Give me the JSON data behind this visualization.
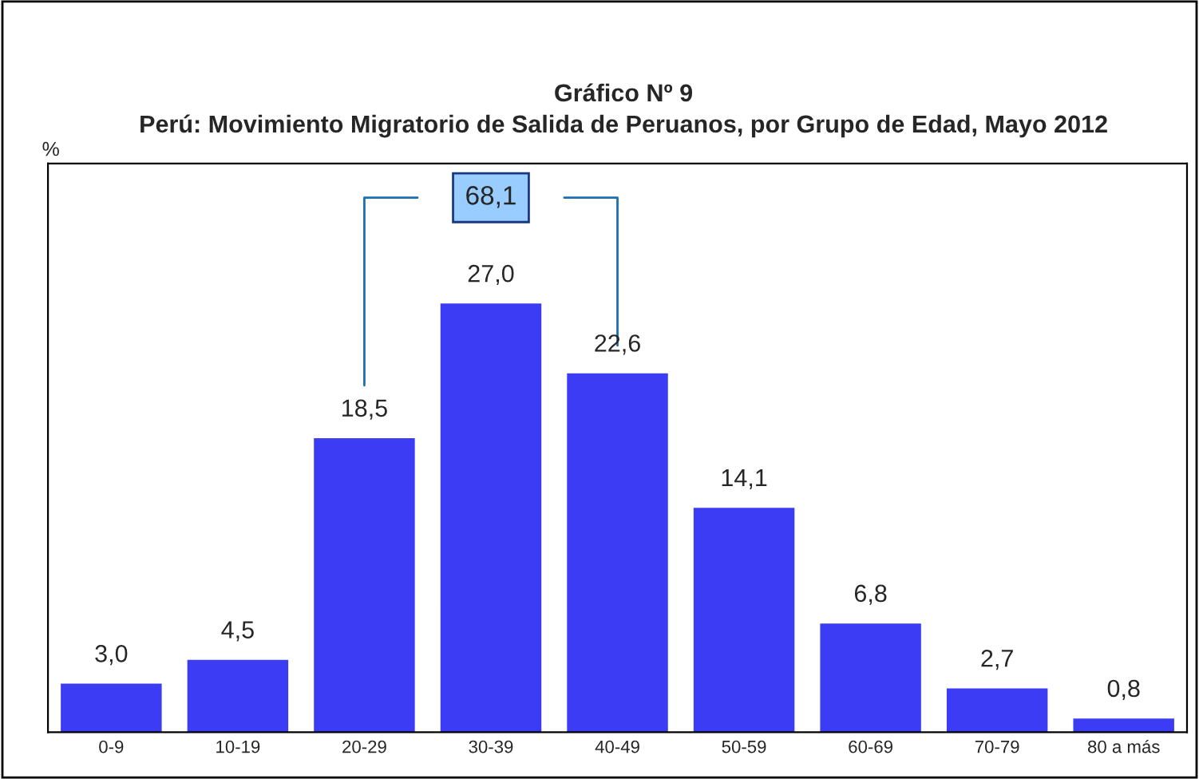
{
  "chart_data": {
    "type": "bar",
    "title": "Gráfico Nº 9",
    "subtitle": "Perú: Movimiento Migratorio de Salida de Peruanos, por Grupo de Edad, Mayo 2012",
    "categories": [
      "0-9",
      "10-19",
      "20-29",
      "30-39",
      "40-49",
      "50-59",
      "60-69",
      "70-79",
      "80 a más"
    ],
    "values": [
      3.0,
      4.5,
      18.5,
      27.0,
      22.6,
      14.1,
      6.8,
      2.7,
      0.8
    ],
    "value_labels": [
      "3,0",
      "4,5",
      "18,5",
      "27,0",
      "22,6",
      "14,1",
      "6,8",
      "2,7",
      "0,8"
    ],
    "color": "#3c3cf5",
    "annotations": [
      "%",
      "68,1"
    ],
    "grid": false,
    "legend": false,
    "tick_labels": "x"
  }
}
